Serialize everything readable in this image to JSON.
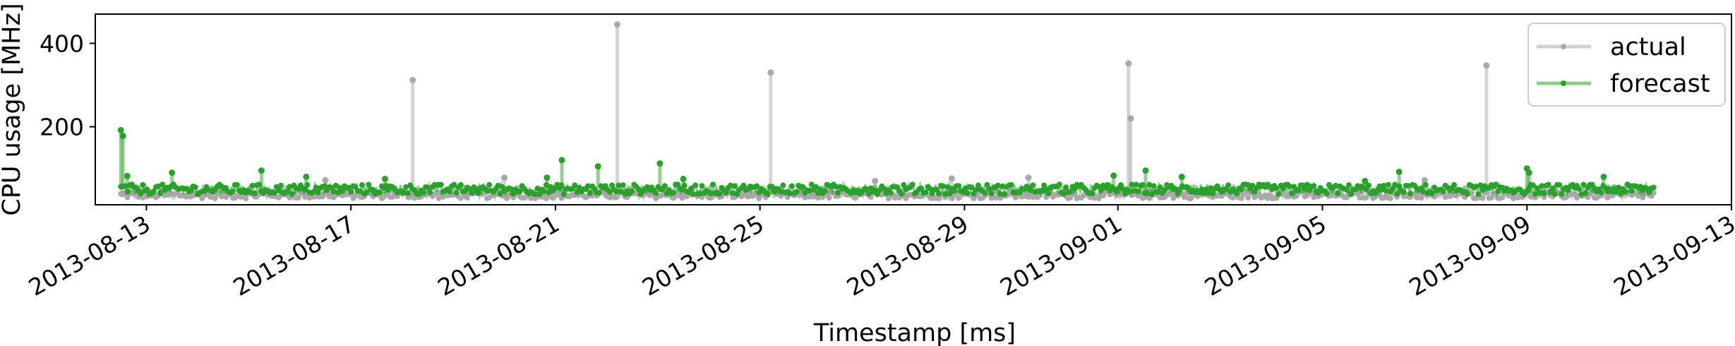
{
  "chart_data": {
    "type": "line",
    "title": "",
    "xlabel": "Timestamp [ms]",
    "ylabel": "CPU usage [MHz]",
    "x_range": [
      "2013-08-12T00:00:00",
      "2013-09-13T00:00:00"
    ],
    "x_ticks": [
      "2013-08-13",
      "2013-08-17",
      "2013-08-21",
      "2013-08-25",
      "2013-08-29",
      "2013-09-01",
      "2013-09-05",
      "2013-09-09",
      "2013-09-13"
    ],
    "y_ticks": [
      200,
      400
    ],
    "ylim": [
      13,
      470
    ],
    "grid": false,
    "legend": {
      "placement": "top-right",
      "entries": [
        "actual",
        "forecast"
      ]
    },
    "x_start": "2013-08-12T12:00:00",
    "x_end": "2013-09-11T12:00:00",
    "series": [
      {
        "name": "actual",
        "color": "#a9a9a9",
        "baseline": [
          28,
          45
        ],
        "points": [
          {
            "x": "2013-08-18T05:00:00",
            "y": 312
          },
          {
            "x": "2013-08-22T05:00:00",
            "y": 445
          },
          {
            "x": "2013-08-25T05:00:00",
            "y": 330
          },
          {
            "x": "2013-09-01T05:00:00",
            "y": 352
          },
          {
            "x": "2013-09-01T06:00:00",
            "y": 220
          },
          {
            "x": "2013-09-08T05:00:00",
            "y": 347
          },
          {
            "x": "2013-08-16T12:00:00",
            "y": 72
          },
          {
            "x": "2013-08-20T00:00:00",
            "y": 78
          },
          {
            "x": "2013-08-27T06:00:00",
            "y": 70
          },
          {
            "x": "2013-08-28T18:00:00",
            "y": 76
          },
          {
            "x": "2013-08-30T06:00:00",
            "y": 78
          },
          {
            "x": "2013-09-07T00:00:00",
            "y": 72
          }
        ]
      },
      {
        "name": "forecast",
        "color": "#2ca02c",
        "baseline": [
          38,
          62
        ],
        "points": [
          {
            "x": "2013-08-12T12:00:00",
            "y": 192
          },
          {
            "x": "2013-08-12T13:00:00",
            "y": 178
          },
          {
            "x": "2013-08-12T15:00:00",
            "y": 82
          },
          {
            "x": "2013-08-13T12:00:00",
            "y": 90
          },
          {
            "x": "2013-08-15T06:00:00",
            "y": 95
          },
          {
            "x": "2013-08-16T03:00:00",
            "y": 80
          },
          {
            "x": "2013-08-17T16:00:00",
            "y": 75
          },
          {
            "x": "2013-08-20T20:00:00",
            "y": 78
          },
          {
            "x": "2013-08-21T03:00:00",
            "y": 120
          },
          {
            "x": "2013-08-21T20:00:00",
            "y": 105
          },
          {
            "x": "2013-08-23T01:00:00",
            "y": 112
          },
          {
            "x": "2013-08-23T12:00:00",
            "y": 75
          },
          {
            "x": "2013-08-31T22:00:00",
            "y": 83
          },
          {
            "x": "2013-09-01T13:00:00",
            "y": 95
          },
          {
            "x": "2013-09-02T06:00:00",
            "y": 80
          },
          {
            "x": "2013-09-05T20:00:00",
            "y": 70
          },
          {
            "x": "2013-09-06T12:00:00",
            "y": 92
          },
          {
            "x": "2013-09-09T00:00:00",
            "y": 100
          },
          {
            "x": "2013-09-09T01:00:00",
            "y": 90
          },
          {
            "x": "2013-09-10T12:00:00",
            "y": 80
          }
        ]
      }
    ]
  }
}
